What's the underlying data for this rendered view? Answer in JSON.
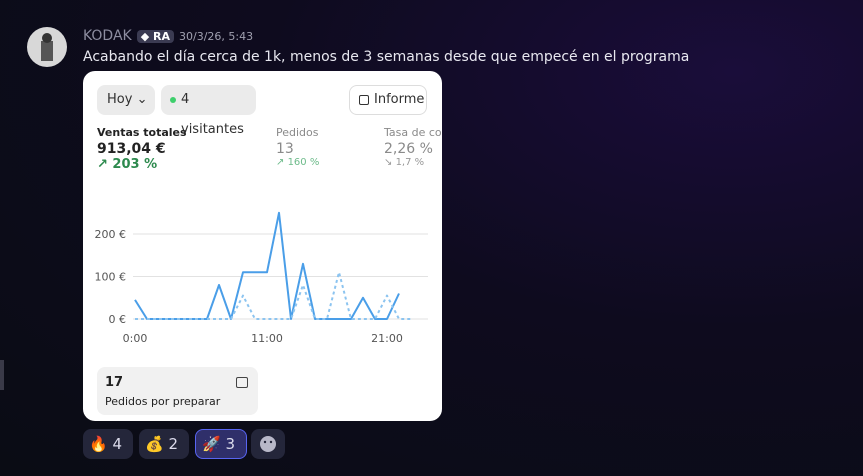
{
  "message": {
    "author": "KODAK",
    "badge": "RA",
    "timestamp": "30/3/26, 5:43",
    "text": "Acabando el día cerca de 1k, menos de 3 semanas desde que empecé en el programa"
  },
  "embed": {
    "range_button": "Hoy",
    "visitors": "4 visitantes",
    "report_button": "Informe",
    "metrics": [
      {
        "label": "Ventas totales",
        "value": "913,04 €",
        "change": "203 %"
      },
      {
        "label": "Pedidos",
        "value": "13",
        "change": "160 %"
      },
      {
        "label": "Tasa de co",
        "value": "2,26 %",
        "change": "1,7 %"
      }
    ],
    "chart": {
      "type": "line",
      "x": [
        0,
        1,
        2,
        3,
        4,
        5,
        6,
        7,
        8,
        9,
        10,
        11,
        12,
        13,
        14,
        15,
        16,
        17,
        18,
        19,
        20,
        21,
        22,
        23
      ],
      "xlim": [
        0,
        23
      ],
      "xticks": [
        {
          "value": 0,
          "label": "0:00"
        },
        {
          "value": 11,
          "label": "11:00"
        },
        {
          "value": 21,
          "label": "21:00"
        }
      ],
      "ylim": [
        0,
        260
      ],
      "yticks": [
        {
          "value": 0,
          "label": "0 €"
        },
        {
          "value": 100,
          "label": "100 €"
        },
        {
          "value": 200,
          "label": "200 €"
        }
      ],
      "grid": true,
      "series": [
        {
          "color": "#4a9ee8",
          "style": "solid",
          "values": [
            45,
            0,
            0,
            0,
            0,
            0,
            0,
            80,
            0,
            110,
            110,
            110,
            250,
            0,
            130,
            0,
            0,
            0,
            0,
            50,
            0,
            0,
            60,
            null
          ]
        },
        {
          "color": "#8cc4f0",
          "style": "dashed",
          "values": [
            0,
            0,
            0,
            0,
            0,
            0,
            0,
            0,
            0,
            55,
            0,
            0,
            0,
            0,
            80,
            0,
            0,
            110,
            0,
            0,
            0,
            55,
            0,
            0
          ]
        }
      ]
    },
    "orders_card": {
      "count": "17",
      "label": "Pedidos por preparar"
    }
  },
  "reactions": [
    {
      "emoji": "🔥",
      "count": "4"
    },
    {
      "emoji": "💰",
      "count": "2"
    },
    {
      "emoji": "🚀",
      "count": "3"
    }
  ]
}
